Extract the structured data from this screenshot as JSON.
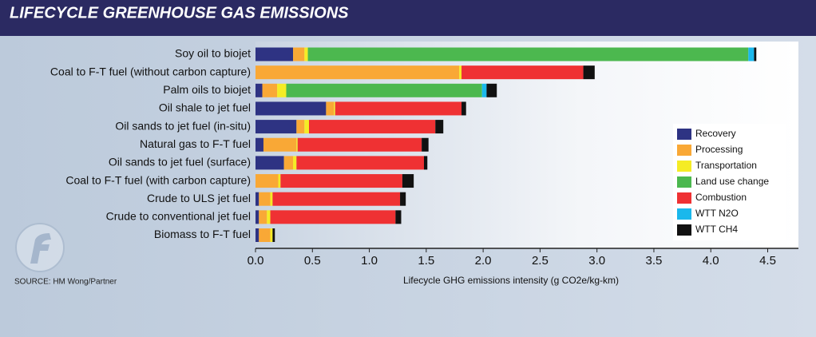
{
  "chart_data": {
    "type": "bar",
    "orientation": "horizontal",
    "stacked": true,
    "title": "LIFECYCLE GREENHOUSE GAS EMISSIONS",
    "source": "SOURCE: HM Wong/Partner",
    "x_label": "Lifecycle GHG emissions intensity (g CO2e/kg-km)",
    "categories": [
      "Soy oil to biojet",
      "Coal to F-T fuel (without carbon capture)",
      "Palm oils to biojet",
      "Oil shale to jet fuel",
      "Oil sands to jet fuel (in-situ)",
      "Natural gas to F-T fuel",
      "Oil sands to jet fuel (surface)",
      "Coal to F-T fuel (with carbon capture)",
      "Crude to ULS jet fuel",
      "Crude to conventional jet fuel",
      "Biomass to F-T fuel"
    ],
    "series": [
      {
        "name": "Recovery",
        "color": "#2e3383",
        "values": [
          0.33,
          0,
          0.06,
          0.62,
          0.36,
          0.07,
          0.25,
          0,
          0.03,
          0.03,
          0.03
        ]
      },
      {
        "name": "Processing",
        "color": "#f9a836",
        "values": [
          0.1,
          1.79,
          0.13,
          0.07,
          0.07,
          0.29,
          0.08,
          0.2,
          0.1,
          0.07,
          0.1
        ]
      },
      {
        "name": "Transportation",
        "color": "#f5ec25",
        "values": [
          0.03,
          0.02,
          0.08,
          0.01,
          0.04,
          0.01,
          0.03,
          0.02,
          0.02,
          0.03,
          0.02
        ]
      },
      {
        "name": "Land use change",
        "color": "#4cb84f",
        "values": [
          3.87,
          0,
          1.72,
          0,
          0,
          0,
          0,
          0,
          0,
          0,
          0
        ]
      },
      {
        "name": "Combustion",
        "color": "#ef3133",
        "values": [
          0,
          1.07,
          0,
          1.11,
          1.11,
          1.09,
          1.12,
          1.07,
          1.12,
          1.1,
          0
        ]
      },
      {
        "name": "WTT N2O",
        "color": "#1ab8ec",
        "values": [
          0.05,
          0,
          0.04,
          0,
          0,
          0,
          0,
          0,
          0,
          0,
          0
        ]
      },
      {
        "name": "WTT CH4",
        "color": "#111111",
        "values": [
          0.02,
          0.1,
          0.09,
          0.04,
          0.07,
          0.06,
          0.03,
          0.1,
          0.05,
          0.05,
          0.02
        ]
      }
    ],
    "xlim": [
      0,
      4.77
    ],
    "xticks": [
      {
        "value": 0,
        "label": "0.0"
      },
      0.5,
      {
        "value": 1,
        "label": "1.0"
      },
      1.5,
      {
        "value": 2,
        "label": "2.0"
      },
      2.5,
      {
        "value": 3,
        "label": "3.0"
      },
      3.5,
      {
        "value": 4,
        "label": "4.0"
      },
      4.5
    ],
    "legend": "right"
  }
}
